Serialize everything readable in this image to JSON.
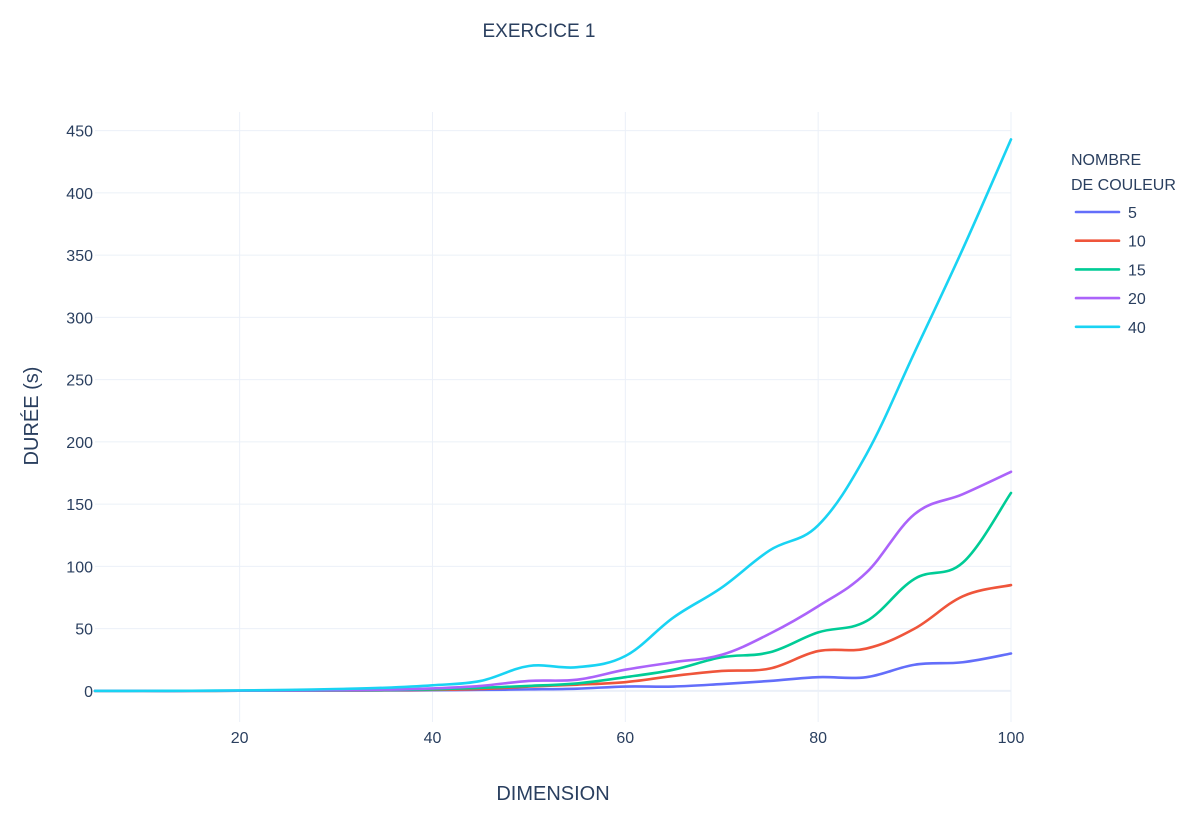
{
  "chart_data": {
    "type": "line",
    "title": "EXERCICE 1",
    "xlabel": "DIMENSION",
    "ylabel": "DURÉE (s)",
    "xlim": [
      5,
      100
    ],
    "ylim": [
      -25,
      465
    ],
    "x_ticks": [
      20,
      40,
      60,
      80,
      100
    ],
    "y_ticks": [
      0,
      50,
      100,
      150,
      200,
      250,
      300,
      350,
      400,
      450
    ],
    "x_tick_labels": [
      "20",
      "40",
      "60",
      "80",
      "100"
    ],
    "y_tick_labels": [
      "0",
      "50",
      "100",
      "150",
      "200",
      "250",
      "300",
      "350",
      "400",
      "450"
    ],
    "grid": true,
    "legend_title_lines": [
      "NOMBRE",
      "DE COULEUR"
    ],
    "legend_position": "right",
    "x": [
      5,
      10,
      15,
      20,
      25,
      30,
      35,
      40,
      45,
      50,
      55,
      60,
      65,
      70,
      75,
      80,
      85,
      90,
      95,
      100
    ],
    "series": [
      {
        "name": "5",
        "color": "#636efa",
        "values": [
          0,
          0,
          0,
          0.1,
          0.1,
          0.2,
          0.3,
          0.5,
          0.8,
          1.2,
          1.8,
          3.5,
          3.5,
          5.5,
          8,
          11,
          11,
          21,
          23,
          30
        ]
      },
      {
        "name": "10",
        "color": "#ef553b",
        "values": [
          0,
          0,
          0,
          0.1,
          0.2,
          0.3,
          0.5,
          0.8,
          1.5,
          3.5,
          5,
          7,
          12,
          16,
          18,
          32,
          34,
          50,
          76,
          85
        ]
      },
      {
        "name": "15",
        "color": "#00cc96",
        "values": [
          0,
          0,
          0,
          0.1,
          0.2,
          0.4,
          0.7,
          1.2,
          2.5,
          4,
          6,
          11,
          17,
          27,
          31,
          47,
          56,
          90,
          103,
          159
        ]
      },
      {
        "name": "20",
        "color": "#ab63fa",
        "values": [
          0,
          0,
          0,
          0.2,
          0.3,
          0.6,
          1,
          2,
          4,
          8,
          9,
          17,
          23,
          29,
          46,
          68,
          95,
          142,
          158,
          176
        ]
      },
      {
        "name": "40",
        "color": "#19d3f3",
        "values": [
          0,
          0,
          0.1,
          0.4,
          0.8,
          1.5,
          2.5,
          4.5,
          8,
          20,
          19,
          28,
          59,
          83,
          113,
          133,
          190,
          272,
          355,
          443
        ]
      }
    ]
  }
}
